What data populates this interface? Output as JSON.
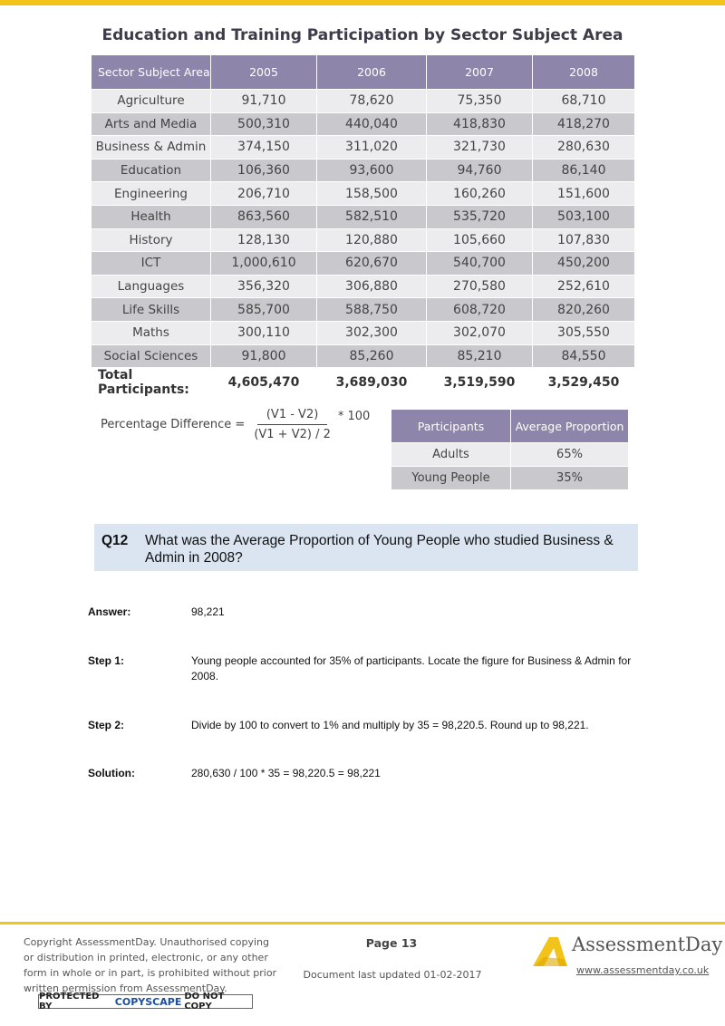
{
  "table": {
    "title": "Education and Training Participation by Sector Subject Area",
    "headers": [
      "Sector Subject Area",
      "2005",
      "2006",
      "2007",
      "2008"
    ],
    "rows": [
      [
        "Agriculture",
        "91,710",
        "78,620",
        "75,350",
        "68,710"
      ],
      [
        "Arts and Media",
        "500,310",
        "440,040",
        "418,830",
        "418,270"
      ],
      [
        "Business & Admin",
        "374,150",
        "311,020",
        "321,730",
        "280,630"
      ],
      [
        "Education",
        "106,360",
        "93,600",
        "94,760",
        "86,140"
      ],
      [
        "Engineering",
        "206,710",
        "158,500",
        "160,260",
        "151,600"
      ],
      [
        "Health",
        "863,560",
        "582,510",
        "535,720",
        "503,100"
      ],
      [
        "History",
        "128,130",
        "120,880",
        "105,660",
        "107,830"
      ],
      [
        "ICT",
        "1,000,610",
        "620,670",
        "540,700",
        "450,200"
      ],
      [
        "Languages",
        "356,320",
        "306,880",
        "270,580",
        "252,610"
      ],
      [
        "Life Skills",
        "585,700",
        "588,750",
        "608,720",
        "820,260"
      ],
      [
        "Maths",
        "300,110",
        "302,300",
        "302,070",
        "305,550"
      ],
      [
        "Social Sciences",
        "91,800",
        "85,260",
        "85,210",
        "84,550"
      ]
    ],
    "total": [
      "Total Participants:",
      "4,605,470",
      "3,689,030",
      "3,519,590",
      "3,529,450"
    ]
  },
  "formula": {
    "label": "Percentage Difference =",
    "numerator": "(V1 - V2)",
    "denominator": "(V1 + V2) / 2",
    "multiplier": "* 100"
  },
  "proportion_table": {
    "headers": [
      "Participants",
      "Average Proportion"
    ],
    "rows": [
      [
        "Adults",
        "65%"
      ],
      [
        "Young People",
        "35%"
      ]
    ]
  },
  "question": {
    "number": "Q12",
    "text": "What was the Average Proportion of Young People who studied Business & Admin in 2008?"
  },
  "answer": {
    "answer_label": "Answer:",
    "answer_value": "98,221",
    "step1_label": "Step 1:",
    "step1_value": "Young people accounted for 35% of participants. Locate the figure for Business & Admin for 2008.",
    "step2_label": "Step 2:",
    "step2_value": "Divide by 100 to convert to 1% and multiply by 35 = 98,220.5. Round up to 98,221.",
    "solution_label": "Solution:",
    "solution_value": "280,630 / 100 * 35 = 98,220.5 = 98,221"
  },
  "footer": {
    "copyright": "Copyright AssessmentDay. Unauthorised copying or distribution in printed, electronic, or any other form in whole or in part, is prohibited without prior written permission from AssessmentDay.",
    "copyscape_left": "PROTECTED BY",
    "copyscape_brand": "COPYSCAPE",
    "copyscape_right": "DO NOT COPY",
    "page": "Page 13",
    "updated": "Document last updated 01-02-2017",
    "logo_text": "AssessmentDay",
    "url": "www.assessmentday.co.uk",
    "brand_color": "#f2c31a"
  }
}
